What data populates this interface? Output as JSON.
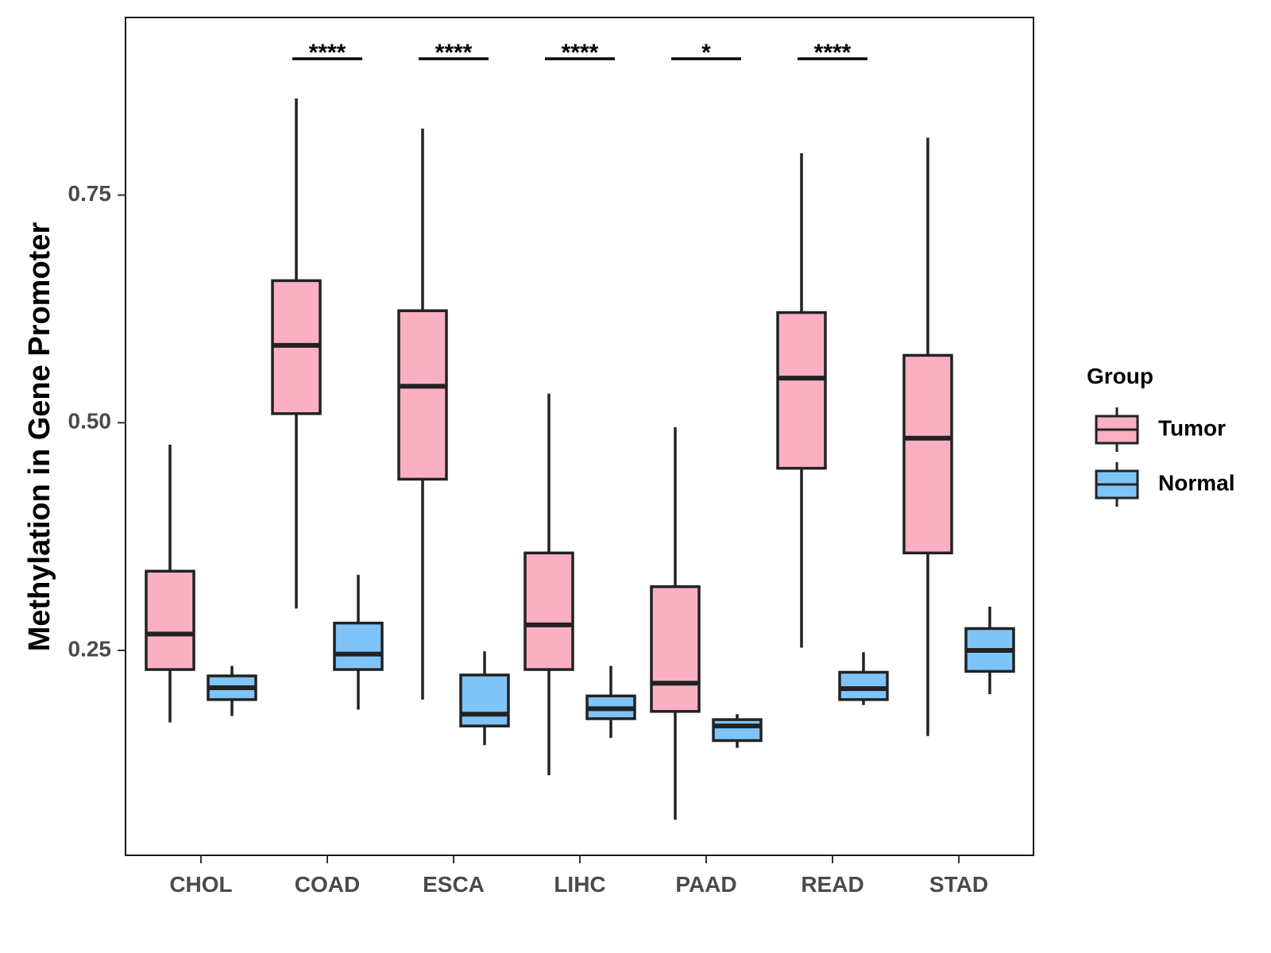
{
  "chart_data": {
    "type": "boxplot",
    "ylabel": "Methylation in Gene Promoter",
    "xlabel": "",
    "ylim": [
      0.025,
      0.945
    ],
    "yticks": [
      0.25,
      0.5,
      0.75
    ],
    "ytick_labels": [
      "0.25",
      "0.50",
      "0.75"
    ],
    "categories": [
      "CHOL",
      "COAD",
      "ESCA",
      "LIHC",
      "PAAD",
      "READ",
      "STAD"
    ],
    "legend": {
      "title": "Group",
      "position": "right",
      "entries": [
        {
          "name": "Tumor",
          "color": "#FAB0C2"
        },
        {
          "name": "Normal",
          "color": "#7EC4F8"
        }
      ]
    },
    "series": [
      {
        "name": "Tumor",
        "color": "#FAB0C2",
        "boxes": [
          {
            "min": 0.171,
            "q1": 0.229,
            "median": 0.268,
            "q3": 0.337,
            "max": 0.476
          },
          {
            "min": 0.296,
            "q1": 0.51,
            "median": 0.585,
            "q3": 0.656,
            "max": 0.856
          },
          {
            "min": 0.196,
            "q1": 0.438,
            "median": 0.54,
            "q3": 0.623,
            "max": 0.823
          },
          {
            "min": 0.113,
            "q1": 0.229,
            "median": 0.278,
            "q3": 0.357,
            "max": 0.532
          },
          {
            "min": 0.064,
            "q1": 0.183,
            "median": 0.214,
            "q3": 0.32,
            "max": 0.495
          },
          {
            "min": 0.253,
            "q1": 0.45,
            "median": 0.549,
            "q3": 0.621,
            "max": 0.796
          },
          {
            "min": 0.156,
            "q1": 0.357,
            "median": 0.483,
            "q3": 0.574,
            "max": 0.813
          }
        ]
      },
      {
        "name": "Normal",
        "color": "#7EC4F8",
        "boxes": [
          {
            "min": 0.178,
            "q1": 0.196,
            "median": 0.209,
            "q3": 0.222,
            "max": 0.233
          },
          {
            "min": 0.185,
            "q1": 0.229,
            "median": 0.246,
            "q3": 0.28,
            "max": 0.333
          },
          {
            "min": 0.146,
            "q1": 0.167,
            "median": 0.18,
            "q3": 0.223,
            "max": 0.249
          },
          {
            "min": 0.154,
            "q1": 0.175,
            "median": 0.186,
            "q3": 0.2,
            "max": 0.233
          },
          {
            "min": 0.143,
            "q1": 0.151,
            "median": 0.167,
            "q3": 0.174,
            "max": 0.18
          },
          {
            "min": 0.19,
            "q1": 0.196,
            "median": 0.208,
            "q3": 0.226,
            "max": 0.248
          },
          {
            "min": 0.202,
            "q1": 0.227,
            "median": 0.25,
            "q3": 0.274,
            "max": 0.298
          }
        ]
      }
    ],
    "significance": [
      {
        "category": "COAD",
        "label": "****"
      },
      {
        "category": "ESCA",
        "label": "****"
      },
      {
        "category": "LIHC",
        "label": "****"
      },
      {
        "category": "PAAD",
        "label": "*"
      },
      {
        "category": "READ",
        "label": "****"
      }
    ]
  }
}
